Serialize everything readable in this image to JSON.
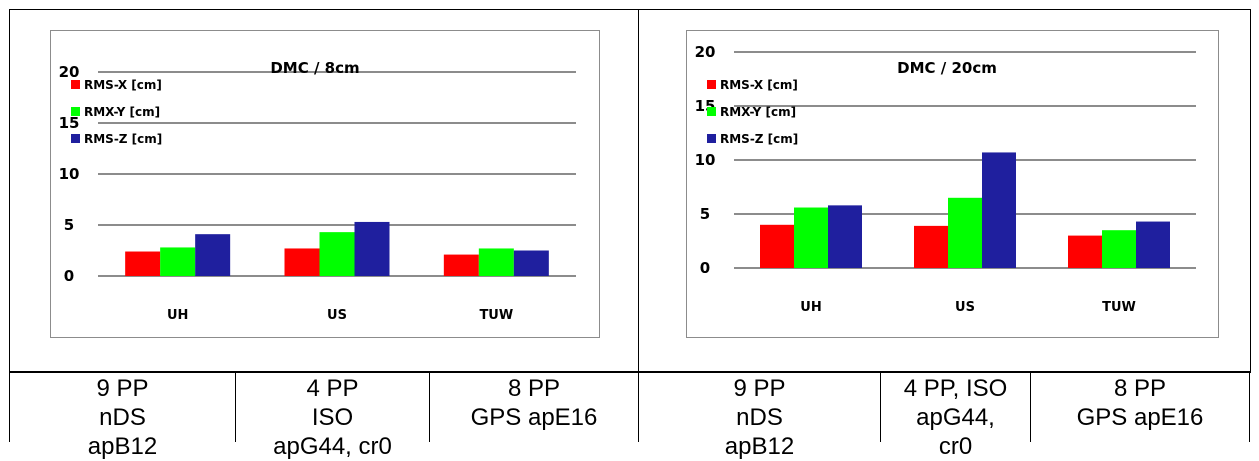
{
  "colors": {
    "rms_x": "#ff0000",
    "rmx_y": "#00ff00",
    "rms_z": "#1f1f9e",
    "grid": "#8c8c8c"
  },
  "chart_data": [
    {
      "type": "bar",
      "title": "DMC / 8cm",
      "categories": [
        "UH",
        "US",
        "TUW"
      ],
      "series": [
        {
          "name": "RMS-X [cm]",
          "values": [
            2.4,
            2.7,
            2.1
          ]
        },
        {
          "name": "RMX-Y [cm]",
          "values": [
            2.8,
            4.3,
            2.7
          ]
        },
        {
          "name": "RMS-Z [cm]",
          "values": [
            4.1,
            5.3,
            2.5
          ]
        }
      ],
      "yticks": [
        "0",
        "5",
        "10",
        "15",
        "20"
      ],
      "ylim": [
        0,
        20
      ],
      "grid": true,
      "legend": "top-left"
    },
    {
      "type": "bar",
      "title": "DMC / 20cm",
      "categories": [
        "UH",
        "US",
        "TUW"
      ],
      "series": [
        {
          "name": "RMS-X [cm]",
          "values": [
            4.0,
            3.9,
            3.0
          ]
        },
        {
          "name": "RMX-Y [cm]",
          "values": [
            5.6,
            6.5,
            3.5
          ]
        },
        {
          "name": "RMS-Z [cm]",
          "values": [
            5.8,
            10.7,
            4.3
          ]
        }
      ],
      "yticks": [
        "0",
        "5",
        "10",
        "15",
        "20"
      ],
      "ylim": [
        0,
        20
      ],
      "grid": true,
      "legend": "top-left"
    }
  ],
  "table": {
    "cells": [
      [
        "9 PP",
        "nDS",
        "apB12"
      ],
      [
        "4 PP",
        "ISO",
        "apG44, cr0"
      ],
      [
        "8 PP",
        "GPS apE16"
      ],
      [
        "9 PP",
        "nDS",
        "apB12"
      ],
      [
        "4 PP, ISO",
        "apG44,",
        "cr0"
      ],
      [
        "8 PP",
        "GPS apE16"
      ]
    ]
  }
}
